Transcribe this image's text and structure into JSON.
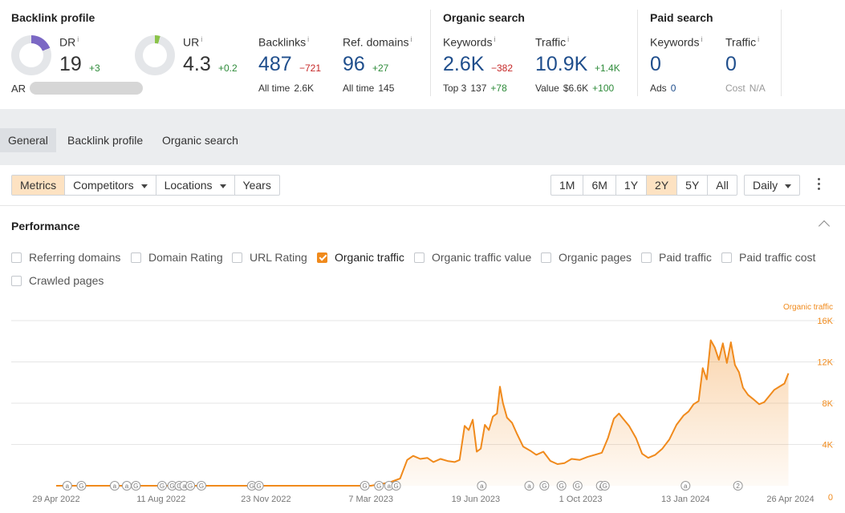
{
  "backlink_profile": {
    "title": "Backlink profile",
    "dr": {
      "label": "DR",
      "info": "i",
      "value": "19",
      "delta": "+3",
      "ring_fraction": 0.19,
      "ring_color": "#7b68c4"
    },
    "ur": {
      "label": "UR",
      "info": "i",
      "value": "4.3",
      "delta": "+0.2",
      "ring_fraction": 0.043,
      "ring_color": "#8bc34a"
    },
    "backlinks": {
      "label": "Backlinks",
      "info": "i",
      "value": "487",
      "delta": "−721",
      "sub_label": "All time",
      "sub_value": "2.6K"
    },
    "ref_domains": {
      "label": "Ref. domains",
      "info": "i",
      "value": "96",
      "delta": "+27",
      "sub_label": "All time",
      "sub_value": "145"
    },
    "ar_label": "AR"
  },
  "organic_search": {
    "title": "Organic search",
    "keywords": {
      "label": "Keywords",
      "info": "i",
      "value": "2.6K",
      "delta": "−382",
      "sub_label": "Top 3",
      "sub_value": "137",
      "sub_delta": "+78"
    },
    "traffic": {
      "label": "Traffic",
      "info": "i",
      "value": "10.9K",
      "delta": "+1.4K",
      "sub_label": "Value",
      "sub_value": "$6.6K",
      "sub_delta": "+100"
    }
  },
  "paid_search": {
    "title": "Paid search",
    "keywords": {
      "label": "Keywords",
      "info": "i",
      "value": "0",
      "sub_label": "Ads",
      "sub_value": "0"
    },
    "traffic": {
      "label": "Traffic",
      "info": "i",
      "value": "0",
      "sub_label": "Cost",
      "sub_value": "N/A"
    }
  },
  "tabs": [
    {
      "label": "General",
      "active": true
    },
    {
      "label": "Backlink profile",
      "active": false
    },
    {
      "label": "Organic search",
      "active": false
    }
  ],
  "controls": {
    "metrics": "Metrics",
    "competitors": "Competitors",
    "locations": "Locations",
    "years": "Years",
    "ranges": [
      "1M",
      "6M",
      "1Y",
      "2Y",
      "5Y",
      "All"
    ],
    "active_range": "2Y",
    "interval": "Daily"
  },
  "performance": {
    "title": "Performance",
    "checkboxes": [
      {
        "label": "Referring domains",
        "checked": false
      },
      {
        "label": "Domain Rating",
        "checked": false
      },
      {
        "label": "URL Rating",
        "checked": false
      },
      {
        "label": "Organic traffic",
        "checked": true
      },
      {
        "label": "Organic traffic value",
        "checked": false
      },
      {
        "label": "Organic pages",
        "checked": false
      },
      {
        "label": "Paid traffic",
        "checked": false
      },
      {
        "label": "Paid traffic cost",
        "checked": false
      },
      {
        "label": "Crawled pages",
        "checked": false
      }
    ]
  },
  "chart_data": {
    "type": "area",
    "series_name": "Organic traffic",
    "color": "#f08a1c",
    "x_ticks": [
      "29 Apr 2022",
      "11 Aug 2022",
      "23 Nov 2022",
      "7 Mar 2023",
      "19 Jun 2023",
      "1 Oct 2023",
      "13 Jan 2024",
      "26 Apr 2024"
    ],
    "y_ticks": [
      "0",
      "4K",
      "8K",
      "12K",
      "16K"
    ],
    "ylim": [
      0,
      16000
    ],
    "grid": true,
    "points": [
      [
        "2022-04-29",
        0
      ],
      [
        "2023-03-07",
        0
      ],
      [
        "2023-03-25",
        300
      ],
      [
        "2023-04-05",
        700
      ],
      [
        "2023-04-12",
        2500
      ],
      [
        "2023-04-18",
        2900
      ],
      [
        "2023-04-25",
        2600
      ],
      [
        "2023-05-02",
        2700
      ],
      [
        "2023-05-08",
        2300
      ],
      [
        "2023-05-15",
        2600
      ],
      [
        "2023-05-22",
        2400
      ],
      [
        "2023-05-29",
        2300
      ],
      [
        "2023-06-03",
        2500
      ],
      [
        "2023-06-08",
        5800
      ],
      [
        "2023-06-12",
        5400
      ],
      [
        "2023-06-16",
        6400
      ],
      [
        "2023-06-20",
        3300
      ],
      [
        "2023-06-24",
        3600
      ],
      [
        "2023-06-28",
        5900
      ],
      [
        "2023-07-02",
        5400
      ],
      [
        "2023-07-06",
        6700
      ],
      [
        "2023-07-10",
        7000
      ],
      [
        "2023-07-13",
        9600
      ],
      [
        "2023-07-16",
        8000
      ],
      [
        "2023-07-20",
        6600
      ],
      [
        "2023-07-25",
        6100
      ],
      [
        "2023-07-30",
        5000
      ],
      [
        "2023-08-05",
        3800
      ],
      [
        "2023-08-12",
        3400
      ],
      [
        "2023-08-18",
        3000
      ],
      [
        "2023-08-25",
        3300
      ],
      [
        "2023-09-01",
        2400
      ],
      [
        "2023-09-08",
        2100
      ],
      [
        "2023-09-15",
        2200
      ],
      [
        "2023-09-22",
        2600
      ],
      [
        "2023-09-30",
        2500
      ],
      [
        "2023-10-08",
        2800
      ],
      [
        "2023-10-15",
        3000
      ],
      [
        "2023-10-22",
        3200
      ],
      [
        "2023-10-28",
        4600
      ],
      [
        "2023-11-03",
        6500
      ],
      [
        "2023-11-08",
        7000
      ],
      [
        "2023-11-12",
        6500
      ],
      [
        "2023-11-18",
        5800
      ],
      [
        "2023-11-25",
        4600
      ],
      [
        "2023-12-01",
        3100
      ],
      [
        "2023-12-07",
        2700
      ],
      [
        "2023-12-14",
        3000
      ],
      [
        "2023-12-21",
        3600
      ],
      [
        "2023-12-28",
        4500
      ],
      [
        "2024-01-04",
        5900
      ],
      [
        "2024-01-11",
        6800
      ],
      [
        "2024-01-16",
        7200
      ],
      [
        "2024-01-21",
        7900
      ],
      [
        "2024-01-26",
        8200
      ],
      [
        "2024-01-30",
        11400
      ],
      [
        "2024-02-03",
        10300
      ],
      [
        "2024-02-07",
        14100
      ],
      [
        "2024-02-11",
        13400
      ],
      [
        "2024-02-15",
        12200
      ],
      [
        "2024-02-19",
        13800
      ],
      [
        "2024-02-23",
        11900
      ],
      [
        "2024-02-27",
        13900
      ],
      [
        "2024-03-02",
        11700
      ],
      [
        "2024-03-06",
        11000
      ],
      [
        "2024-03-10",
        9500
      ],
      [
        "2024-03-15",
        8800
      ],
      [
        "2024-03-20",
        8400
      ],
      [
        "2024-03-26",
        7900
      ],
      [
        "2024-03-31",
        8100
      ],
      [
        "2024-04-05",
        8700
      ],
      [
        "2024-04-10",
        9300
      ],
      [
        "2024-04-15",
        9600
      ],
      [
        "2024-04-20",
        9900
      ],
      [
        "2024-04-24",
        10900
      ]
    ],
    "annotations": [
      {
        "date": "2022-05-10",
        "symbol": "a"
      },
      {
        "date": "2022-05-24",
        "symbol": "G"
      },
      {
        "date": "2022-06-26",
        "symbol": "a"
      },
      {
        "date": "2022-07-08",
        "symbol": "a"
      },
      {
        "date": "2022-07-17",
        "symbol": "G"
      },
      {
        "date": "2022-08-12",
        "symbol": "G"
      },
      {
        "date": "2022-08-22",
        "symbol": "G"
      },
      {
        "date": "2022-08-29",
        "symbol": "G"
      },
      {
        "date": "2022-09-03",
        "symbol": "a"
      },
      {
        "date": "2022-09-09",
        "symbol": "G"
      },
      {
        "date": "2022-09-20",
        "symbol": "G"
      },
      {
        "date": "2022-11-09",
        "symbol": "G"
      },
      {
        "date": "2022-11-16",
        "symbol": "G"
      },
      {
        "date": "2023-03-01",
        "symbol": "G"
      },
      {
        "date": "2023-03-15",
        "symbol": "G"
      },
      {
        "date": "2023-03-25",
        "symbol": "a"
      },
      {
        "date": "2023-04-01",
        "symbol": "G"
      },
      {
        "date": "2023-06-25",
        "symbol": "a"
      },
      {
        "date": "2023-08-11",
        "symbol": "a"
      },
      {
        "date": "2023-08-26",
        "symbol": "G"
      },
      {
        "date": "2023-09-12",
        "symbol": "G"
      },
      {
        "date": "2023-09-28",
        "symbol": "G"
      },
      {
        "date": "2023-10-21",
        "symbol": "a"
      },
      {
        "date": "2023-10-25",
        "symbol": "G"
      },
      {
        "date": "2024-01-13",
        "symbol": "a"
      },
      {
        "date": "2024-03-05",
        "symbol": "2"
      }
    ]
  }
}
